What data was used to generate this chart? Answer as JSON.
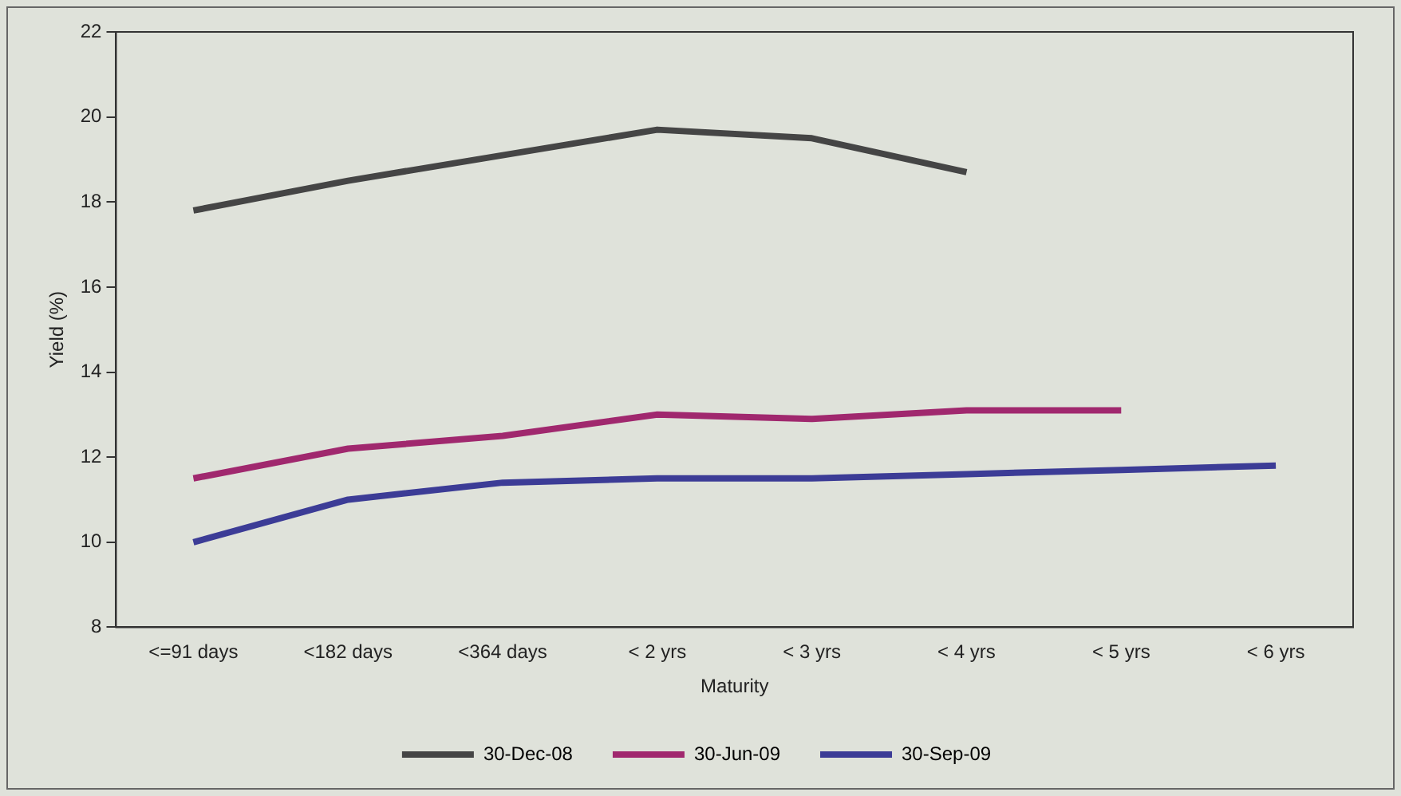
{
  "chart_data": {
    "type": "line",
    "xlabel": "Maturity",
    "ylabel": "Yield (%)",
    "categories": [
      "<=91 days",
      "<182 days",
      "<364 days",
      "< 2 yrs",
      "< 3 yrs",
      "< 4 yrs",
      "< 5 yrs",
      "< 6 yrs"
    ],
    "series": [
      {
        "name": "30-Dec-08",
        "color": "#454545",
        "values": [
          17.8,
          18.5,
          19.1,
          19.7,
          19.5,
          18.7,
          null,
          null
        ]
      },
      {
        "name": "30-Jun-09",
        "color": "#a0286e",
        "values": [
          11.5,
          12.2,
          12.5,
          13.0,
          12.9,
          13.1,
          13.1,
          null
        ]
      },
      {
        "name": "30-Sep-09",
        "color": "#3c3c96",
        "values": [
          10.0,
          11.0,
          11.4,
          11.5,
          11.5,
          11.6,
          11.7,
          11.8
        ]
      }
    ],
    "ylim": [
      8,
      22
    ],
    "yticks": [
      8,
      10,
      12,
      14,
      16,
      18,
      20,
      22
    ],
    "grid": false,
    "legend": "bottom",
    "marker": "none",
    "line_style": "solid"
  }
}
